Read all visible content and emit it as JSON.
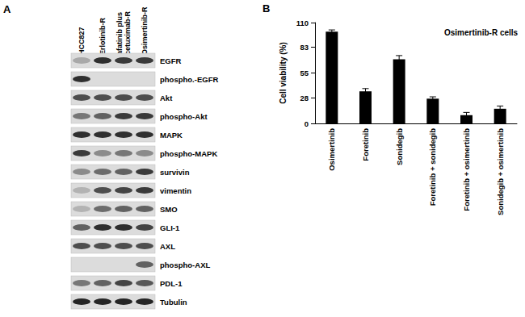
{
  "panel_a": {
    "label": "A",
    "lanes": [
      [
        "HCC827"
      ],
      [
        "Erlotinib-R"
      ],
      [
        "afatinib plus",
        "cetuximab-R"
      ],
      [
        "Osimertinib-R"
      ]
    ],
    "proteins": [
      "EGFR",
      "phospho.-EGFR",
      "Akt",
      "phospho-Akt",
      "MAPK",
      "phospho-MAPK",
      "survivin",
      "vimentin",
      "SMO",
      "GLI-1",
      "AXL",
      "phospho-AXL",
      "PDL-1",
      "Tubulin"
    ]
  },
  "panel_b": {
    "label": "B"
  },
  "chart_data": {
    "type": "bar",
    "title": "Osimertinib-R cells",
    "y_label": "Cell viability (%)",
    "categories": [
      "Osimertinib",
      "Foretinib",
      "Sonidegib",
      "Foretinib + sonidegib",
      "Foretinib + osimertinib",
      "Sonidegib + osimertinib"
    ],
    "values": [
      100,
      35,
      70,
      27,
      9,
      16
    ],
    "errors": [
      2,
      3,
      4,
      2,
      3,
      3
    ],
    "color": "#000000",
    "ylim": [
      0,
      110
    ],
    "yticks": [
      0,
      28,
      55,
      83,
      110
    ],
    "grid": false
  }
}
